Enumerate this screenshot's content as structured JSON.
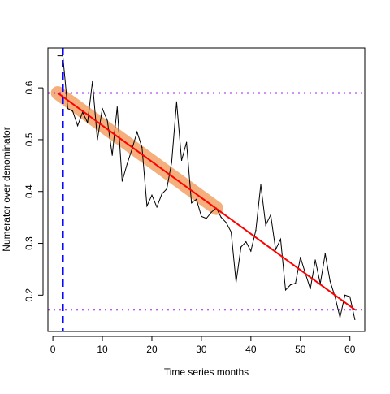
{
  "chart_data": {
    "type": "line",
    "title": "",
    "xlabel": "Time series months",
    "ylabel": "Numerator over denominator",
    "xlim": [
      -1,
      63
    ],
    "ylim": [
      0.13,
      0.677
    ],
    "grid": false,
    "legend": "none",
    "xticks": [
      0,
      10,
      20,
      30,
      40,
      50,
      60
    ],
    "yticks": [
      0.2,
      0.3,
      0.4,
      0.5,
      0.6
    ],
    "ytick_labels": [
      "0.2",
      "0.3",
      "0.4",
      "0.5",
      "0.6"
    ],
    "series": [
      {
        "kind": "observed",
        "x": [
          1,
          2,
          3,
          4,
          5,
          6,
          7,
          8,
          9,
          10,
          11,
          12,
          13,
          14,
          15,
          16,
          17,
          18,
          19,
          20,
          21,
          22,
          23,
          24,
          25,
          26,
          27,
          28,
          29,
          30,
          31,
          32,
          33,
          34,
          35,
          36,
          37,
          38,
          39,
          40,
          41,
          42,
          43,
          44,
          45,
          46,
          47,
          48,
          49,
          50,
          51,
          52,
          53,
          54,
          55,
          56,
          57,
          58,
          59,
          60,
          61
        ],
        "y": [
          0.662,
          0.662,
          0.56,
          0.555,
          0.527,
          0.553,
          0.533,
          0.612,
          0.5,
          0.56,
          0.537,
          0.47,
          0.563,
          0.42,
          0.453,
          0.482,
          0.515,
          0.485,
          0.372,
          0.393,
          0.37,
          0.395,
          0.405,
          0.456,
          0.573,
          0.46,
          0.495,
          0.378,
          0.385,
          0.352,
          0.348,
          0.36,
          0.368,
          0.35,
          0.34,
          0.322,
          0.225,
          0.293,
          0.303,
          0.285,
          0.325,
          0.413,
          0.335,
          0.355,
          0.288,
          0.308,
          0.21,
          0.22,
          0.223,
          0.273,
          0.242,
          0.212,
          0.268,
          0.222,
          0.28,
          0.227,
          0.197,
          0.157,
          0.2,
          0.197,
          0.153
        ],
        "color": "#000000"
      },
      {
        "kind": "fit-line",
        "x": [
          1,
          61
        ],
        "y": [
          0.59,
          0.172
        ],
        "color": "#ff0000"
      },
      {
        "kind": "fit-band",
        "x": [
          1,
          33
        ],
        "y": [
          0.59,
          0.368
        ],
        "color": "#f4a76e"
      }
    ],
    "reference_lines": {
      "horizontal": [
        {
          "y": 0.59,
          "color": "#a020f0",
          "style": "dotted"
        },
        {
          "y": 0.172,
          "color": "#a020f0",
          "style": "dotted"
        }
      ],
      "vertical": [
        {
          "x": 2,
          "color": "#0000ff",
          "style": "dashed"
        }
      ]
    }
  }
}
